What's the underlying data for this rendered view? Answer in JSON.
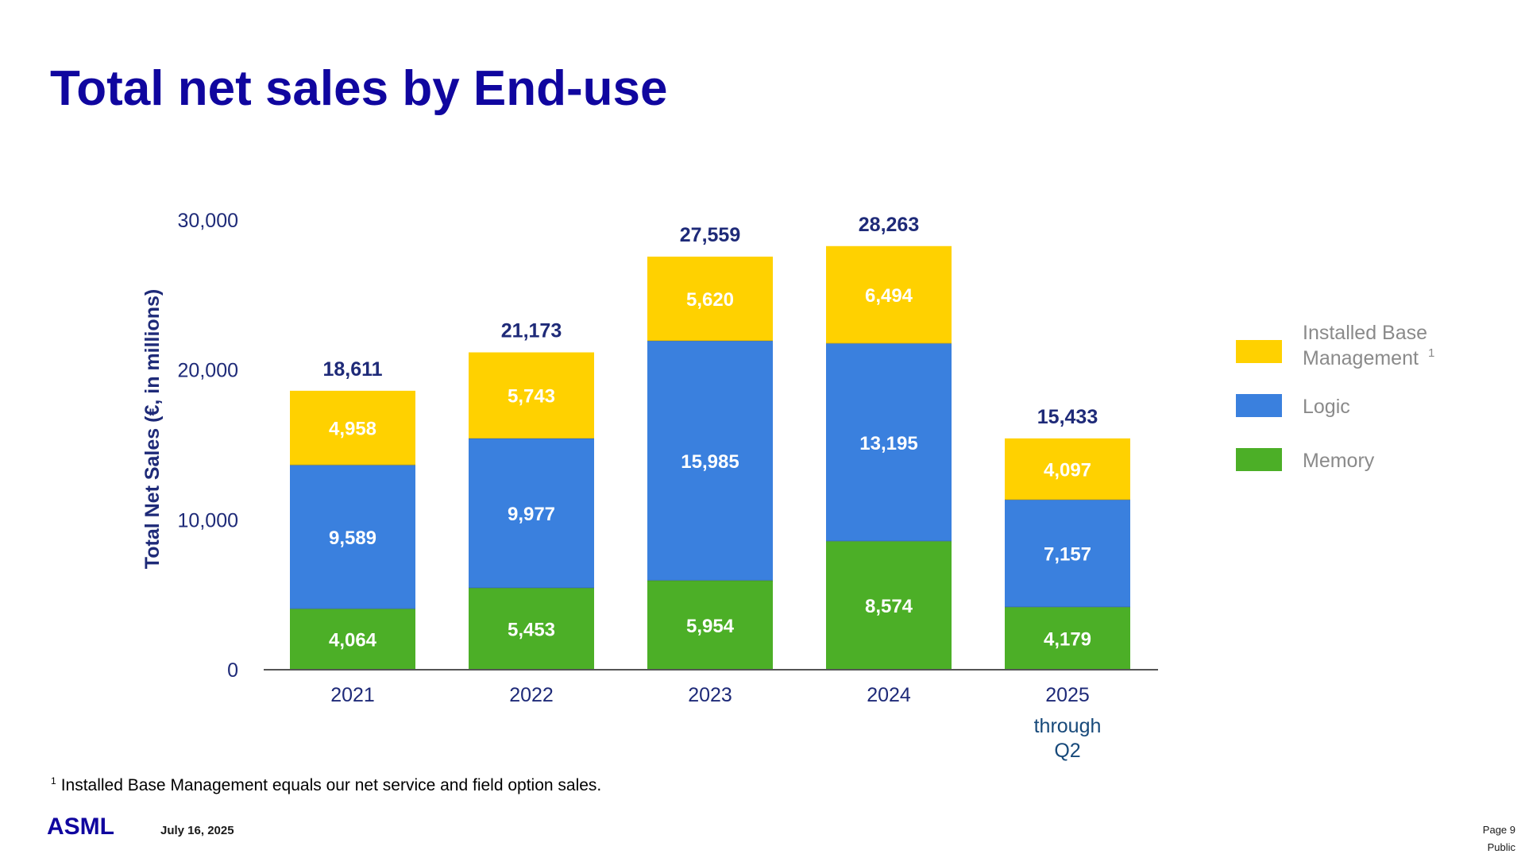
{
  "slide": {
    "title": "Total net sales by End-use",
    "footnote_marker": "1",
    "footnote": "Installed Base Management equals our net service and field option sales.",
    "logo": "ASML",
    "date": "July 16, 2025",
    "page": "Page 9",
    "classification": "Public"
  },
  "colors": {
    "title": "#10069f",
    "installed_base": "#ffd100",
    "logic": "#3a80de",
    "memory": "#4caf27",
    "axis_text": "#1e2a78",
    "legend_text": "#8a8a8a"
  },
  "chart_data": {
    "type": "bar",
    "stacked": true,
    "ylabel": "Total Net Sales (€, in millions)",
    "ylim": [
      0,
      30000
    ],
    "yticks": [
      0,
      10000,
      20000,
      30000
    ],
    "ytick_labels": [
      "0",
      "10,000",
      "20,000",
      "30,000"
    ],
    "categories": [
      "2021",
      "2022",
      "2023",
      "2024",
      "2025"
    ],
    "category_sublabels": [
      "",
      "",
      "",
      "",
      "through Q2"
    ],
    "series": [
      {
        "name": "Memory",
        "color": "#4caf27",
        "values": [
          4064,
          5453,
          5954,
          8574,
          4179
        ],
        "labels": [
          "4,064",
          "5,453",
          "5,954",
          "8,574",
          "4,179"
        ]
      },
      {
        "name": "Logic",
        "color": "#3a80de",
        "values": [
          9589,
          9977,
          15985,
          13195,
          7157
        ],
        "labels": [
          "9,589",
          "9,977",
          "15,985",
          "13,195",
          "7,157"
        ]
      },
      {
        "name": "Installed Base Management",
        "legend_superscript": "1",
        "color": "#ffd100",
        "values": [
          4958,
          5743,
          5620,
          6494,
          4097
        ],
        "labels": [
          "4,958",
          "5,743",
          "5,620",
          "6,494",
          "4,097"
        ]
      }
    ],
    "totals": [
      18611,
      21173,
      27559,
      28263,
      15433
    ],
    "total_labels": [
      "18,611",
      "21,173",
      "27,559",
      "28,263",
      "15,433"
    ],
    "legend": [
      {
        "label_line1": "Installed Base",
        "label_line2": "Management",
        "superscript": "1",
        "color": "#ffd100"
      },
      {
        "label_line1": "Logic",
        "label_line2": "",
        "superscript": "",
        "color": "#3a80de"
      },
      {
        "label_line1": "Memory",
        "label_line2": "",
        "superscript": "",
        "color": "#4caf27"
      }
    ],
    "legend_position": "right"
  }
}
